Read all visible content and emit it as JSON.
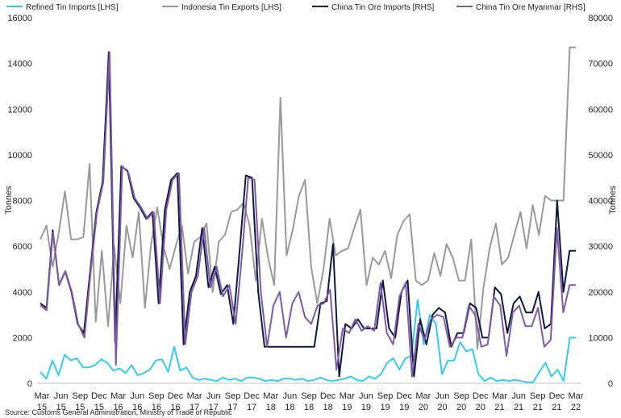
{
  "chart_data": {
    "type": "line",
    "ylabel_left": "Tonnes",
    "ylabel_right": "Tonnes",
    "ylim_left": [
      0,
      16000
    ],
    "ylim_right": [
      0,
      80000
    ],
    "yticks_left": [
      "0",
      "2000",
      "4000",
      "6000",
      "8000",
      "10000",
      "12000",
      "14000",
      "16000"
    ],
    "yticks_right": [
      "0",
      "10000",
      "20000",
      "30000",
      "40000",
      "50000",
      "60000",
      "70000",
      "80000"
    ],
    "x_tick_labels": [
      {
        "month": "Mar",
        "year": "15"
      },
      {
        "month": "Jun",
        "year": "15"
      },
      {
        "month": "Sep",
        "year": "15"
      },
      {
        "month": "Dec",
        "year": "15"
      },
      {
        "month": "Mar",
        "year": "16"
      },
      {
        "month": "Jun",
        "year": "16"
      },
      {
        "month": "Sep",
        "year": "16"
      },
      {
        "month": "Dec",
        "year": "16"
      },
      {
        "month": "Mar",
        "year": "17"
      },
      {
        "month": "Jun",
        "year": "17"
      },
      {
        "month": "Sep",
        "year": "17"
      },
      {
        "month": "Dec",
        "year": "17"
      },
      {
        "month": "Mar",
        "year": "18"
      },
      {
        "month": "Jun",
        "year": "18"
      },
      {
        "month": "Sep",
        "year": "18"
      },
      {
        "month": "Dec",
        "year": "18"
      },
      {
        "month": "Mar",
        "year": "19"
      },
      {
        "month": "Jun",
        "year": "19"
      },
      {
        "month": "Sep",
        "year": "19"
      },
      {
        "month": "Dec",
        "year": "19"
      },
      {
        "month": "Mar",
        "year": "20"
      },
      {
        "month": "Jun",
        "year": "20"
      },
      {
        "month": "Sep",
        "year": "20"
      },
      {
        "month": "Dec",
        "year": "20"
      },
      {
        "month": "Mar",
        "year": "21"
      },
      {
        "month": "Jun",
        "year": "21"
      },
      {
        "month": "Sep",
        "year": "21"
      },
      {
        "month": "Dec",
        "year": "21"
      },
      {
        "month": "Mar",
        "year": "22"
      }
    ],
    "x_start": "Jan 2015",
    "x_end": "Mar 2022",
    "series": [
      {
        "name": "Refined Tin Imports [LHS]",
        "axis": "left",
        "color": "#33ccee",
        "values": [
          500,
          200,
          1000,
          350,
          1250,
          1000,
          1100,
          700,
          700,
          800,
          1050,
          900,
          550,
          650,
          450,
          800,
          350,
          450,
          600,
          1000,
          1050,
          500,
          1600,
          550,
          700,
          250,
          150,
          200,
          150,
          100,
          250,
          150,
          200,
          100,
          250,
          250,
          200,
          100,
          150,
          100,
          200,
          200,
          150,
          200,
          100,
          150,
          250,
          150,
          100,
          150,
          200,
          300,
          150,
          100,
          300,
          200,
          400,
          900,
          1100,
          600,
          1100,
          1200,
          3650,
          1700,
          3000,
          2600,
          400,
          1000,
          1000,
          1800,
          1400,
          1500,
          400,
          100,
          250,
          100,
          150,
          100,
          150,
          100,
          50,
          50,
          500,
          900,
          300,
          600,
          100,
          2000,
          2000
        ]
      },
      {
        "name": "Indonesia Tin Exports [LHS]",
        "axis": "left",
        "color": "#999999",
        "values": [
          6300,
          6900,
          5100,
          6600,
          8400,
          6300,
          6300,
          6400,
          9600,
          2700,
          5800,
          2500,
          6000,
          3500,
          6900,
          5500,
          7500,
          3300,
          6100,
          7700,
          6000,
          5000,
          6000,
          6900,
          4800,
          6200,
          6400,
          7000,
          4000,
          6200,
          6500,
          7500,
          7600,
          7900,
          6900,
          4500,
          7200,
          5500,
          4300,
          12500,
          5600,
          6700,
          8200,
          8900,
          5100,
          3500,
          5000,
          7200,
          5600,
          5800,
          5900,
          6800,
          7600,
          4300,
          5500,
          5200,
          5800,
          4600,
          6500,
          7100,
          7400,
          4500,
          4300,
          4500,
          5700,
          4700,
          6100,
          5500,
          4500,
          4500,
          6300,
          1500,
          4200,
          5900,
          7000,
          5200,
          5500,
          6500,
          7500,
          5900,
          7800,
          6500,
          8200,
          8000,
          8000,
          8000,
          14700,
          14700
        ]
      },
      {
        "name": "China Tin Ore Imports [RHS]",
        "axis": "right",
        "color": "#0e1a3d",
        "values": [
          17500,
          16500,
          33500,
          21500,
          24500,
          20000,
          13000,
          11000,
          24500,
          37500,
          44000,
          72500,
          9000,
          47500,
          46500,
          40500,
          38500,
          36000,
          37500,
          17500,
          38000,
          44500,
          46000,
          8500,
          20000,
          23500,
          34000,
          21000,
          25500,
          19500,
          21500,
          13000,
          29000,
          45500,
          45000,
          20000,
          8000,
          8000,
          8000,
          8000,
          8000,
          8000,
          8000,
          8000,
          8000,
          17500,
          18000,
          30500,
          1500,
          13000,
          12000,
          14000,
          12000,
          12000,
          12000,
          22500,
          12000,
          10000,
          20000,
          22500,
          1500,
          14000,
          8500,
          15000,
          16500,
          15500,
          8000,
          11000,
          11000,
          17500,
          16500,
          10000,
          10000,
          21000,
          19500,
          11000,
          17500,
          19000,
          15500,
          15500,
          20000,
          12000,
          13000,
          40000,
          20000,
          29000,
          29000
        ]
      },
      {
        "name": "China Tin Ore Myanmar [RHS]",
        "axis": "right",
        "color": "#7d5aa8",
        "values": [
          17000,
          16000,
          33000,
          21500,
          24500,
          20000,
          13000,
          10000,
          24500,
          37500,
          44000,
          72500,
          4000,
          47500,
          46000,
          40500,
          38500,
          36000,
          37500,
          17500,
          38000,
          44500,
          46000,
          8500,
          20000,
          23500,
          34000,
          21000,
          25500,
          19000,
          21500,
          13000,
          28000,
          45000,
          44500,
          20000,
          8000,
          17000,
          20000,
          10000,
          17500,
          20000,
          14500,
          13000,
          17000,
          17500,
          20500,
          3000,
          12000,
          11000,
          14000,
          11500,
          12500,
          11500,
          22000,
          11000,
          8500,
          19000,
          22000,
          1500,
          13000,
          9500,
          14000,
          15000,
          14500,
          8000,
          10000,
          10000,
          17000,
          15000,
          8000,
          8500,
          19000,
          17000,
          6000,
          15500,
          17000,
          12500,
          12500,
          16500,
          8000,
          9500,
          34000,
          15500,
          21500,
          21500
        ]
      }
    ]
  },
  "legend": {
    "items": [
      {
        "label": "Refined Tin Imports [LHS]",
        "color": "#33ccee"
      },
      {
        "label": "Indonesia Tin Exports [LHS]",
        "color": "#999999"
      },
      {
        "label": "China Tin Ore Imports [RHS]",
        "color": "#0e1a3d"
      },
      {
        "label": "China Tin Ore Myanmar [RHS]",
        "color": "#7d5aa8"
      }
    ]
  },
  "source": "Source: Customs General Administration, Ministry of Trade of Republic"
}
